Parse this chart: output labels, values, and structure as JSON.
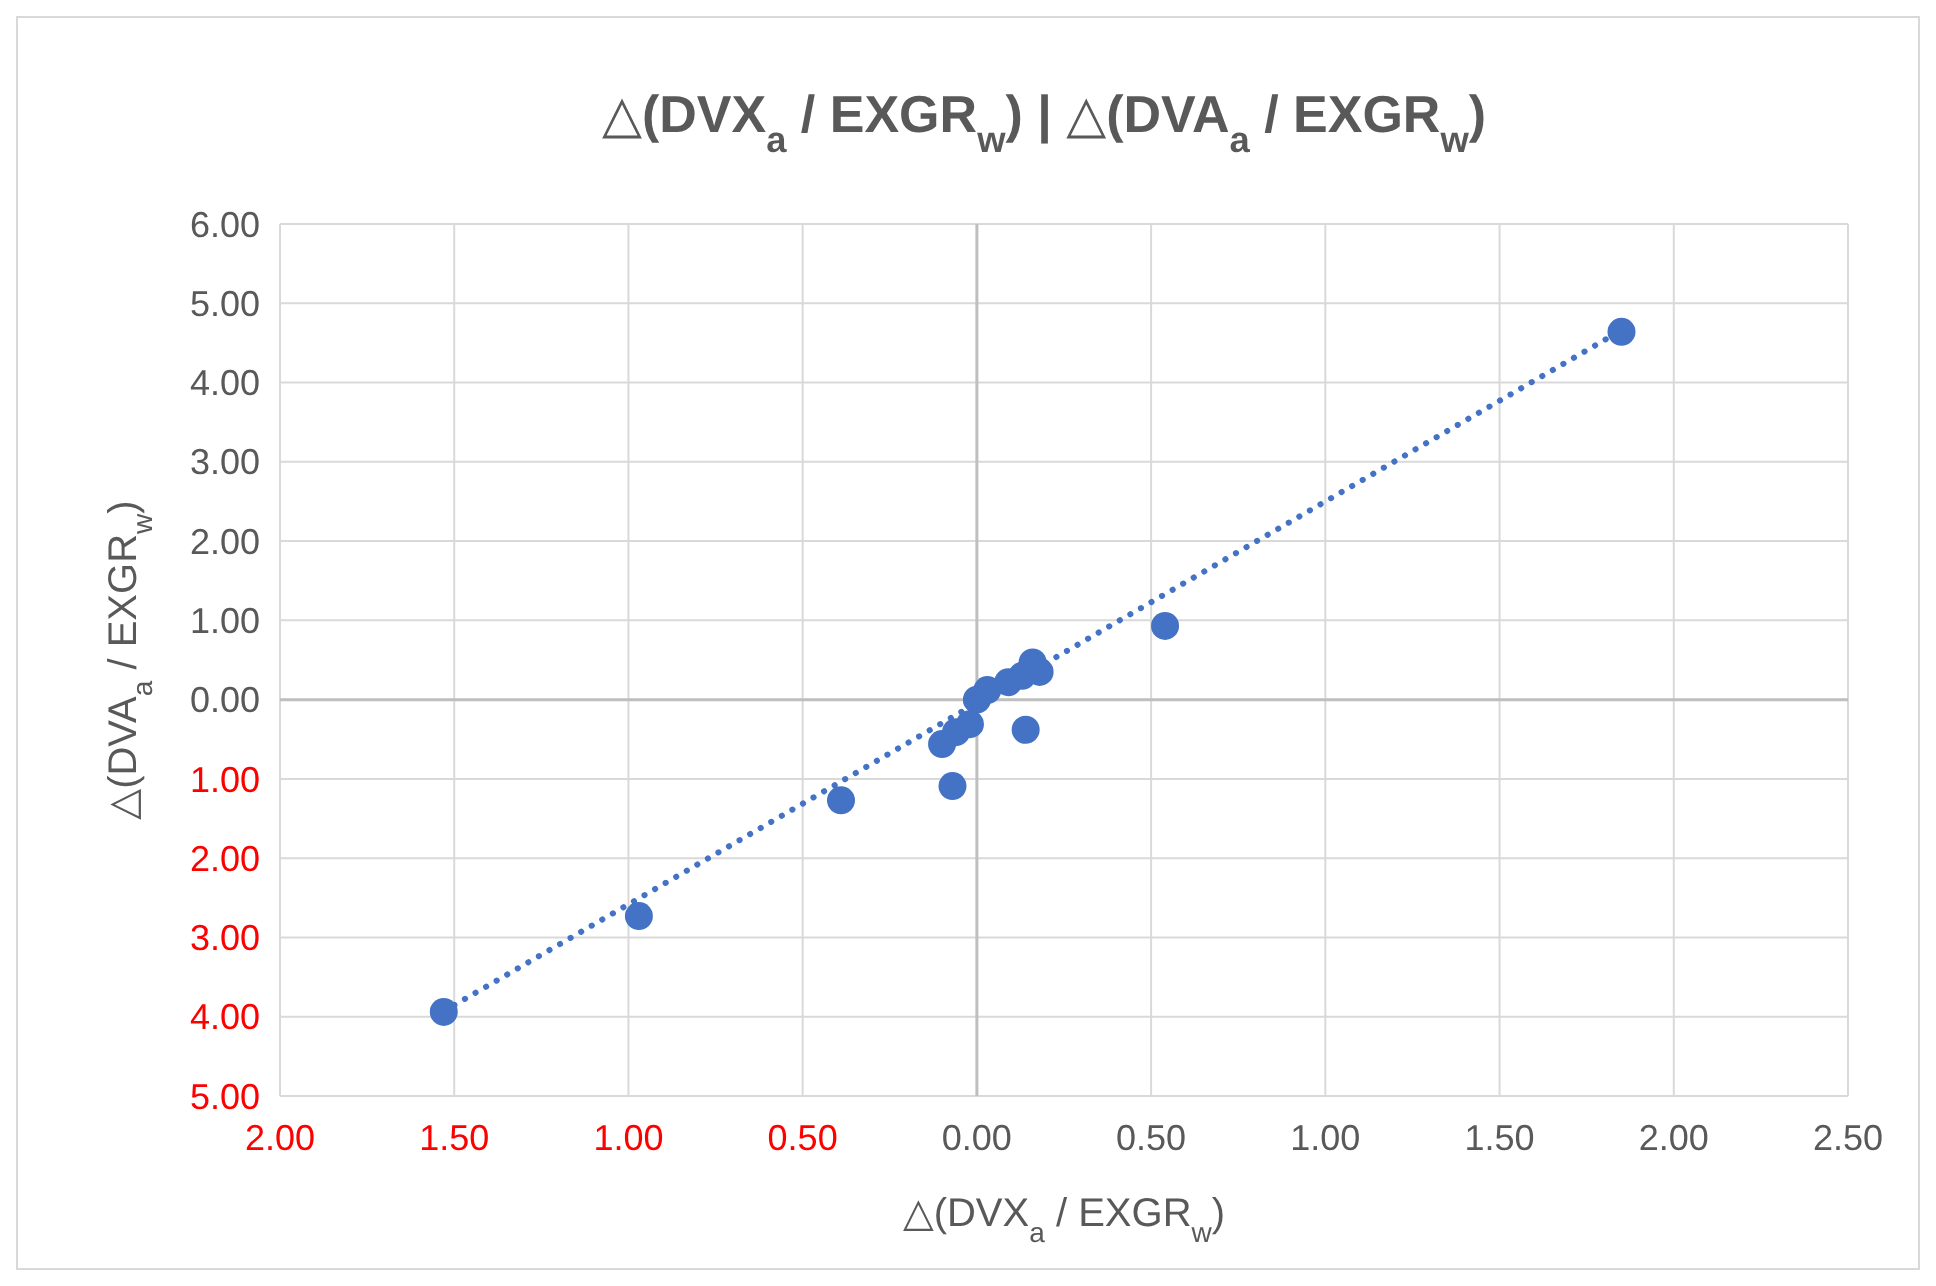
{
  "chart_data": {
    "type": "scatter",
    "title": "△(DVX$_{a}$ / EXGR$_{w}$) | △(DVA$_{a}$ / EXGR$_{w}$)",
    "xlabel": "△(DVX$_{a}$ / EXGR$_{w}$)",
    "ylabel": "△(DVA$_{a}$ / EXGR$_{w}$)",
    "xlim": [
      -2,
      2.5
    ],
    "ylim": [
      -5,
      6
    ],
    "xticks": [
      {
        "value": -2,
        "label": "2.00"
      },
      {
        "value": -1.5,
        "label": "1.50"
      },
      {
        "value": -1,
        "label": "1.00"
      },
      {
        "value": -0.5,
        "label": "0.50"
      },
      {
        "value": 0,
        "label": "0.00"
      },
      {
        "value": 0.5,
        "label": "0.50"
      },
      {
        "value": 1,
        "label": "1.00"
      },
      {
        "value": 1.5,
        "label": "1.50"
      },
      {
        "value": 2,
        "label": "2.00"
      },
      {
        "value": 2.5,
        "label": "2.50"
      }
    ],
    "yticks": [
      {
        "value": -5,
        "label": "5.00"
      },
      {
        "value": -4,
        "label": "4.00"
      },
      {
        "value": -3,
        "label": "3.00"
      },
      {
        "value": -2,
        "label": "2.00"
      },
      {
        "value": -1,
        "label": "1.00"
      },
      {
        "value": 0,
        "label": "0.00"
      },
      {
        "value": 1,
        "label": "1.00"
      },
      {
        "value": 2,
        "label": "2.00"
      },
      {
        "value": 3,
        "label": "3.00"
      },
      {
        "value": 4,
        "label": "4.00"
      },
      {
        "value": 5,
        "label": "5.00"
      },
      {
        "value": 6,
        "label": "6.00"
      }
    ],
    "grid": true,
    "marker": "circle",
    "series": [
      {
        "color": "#4472c4",
        "x": [
          -1.53,
          -0.97,
          -0.39,
          -0.1,
          -0.07,
          -0.06,
          -0.02,
          0,
          0.03,
          0.09,
          0.13,
          0.16,
          0.18,
          0.14,
          0.54,
          1.85
        ],
        "values": [
          -3.94,
          -2.73,
          -1.27,
          -0.56,
          -1.09,
          -0.41,
          -0.31,
          0,
          0.12,
          0.22,
          0.3,
          0.47,
          0.35,
          -0.38,
          0.93,
          4.64
        ]
      },
      {
        "type": "line",
        "color": "#4472c4",
        "line_style": "dotted",
        "marker": "none",
        "x": [
          -1.53,
          1.85
        ],
        "values": [
          -3.93,
          4.66
        ]
      }
    ]
  }
}
